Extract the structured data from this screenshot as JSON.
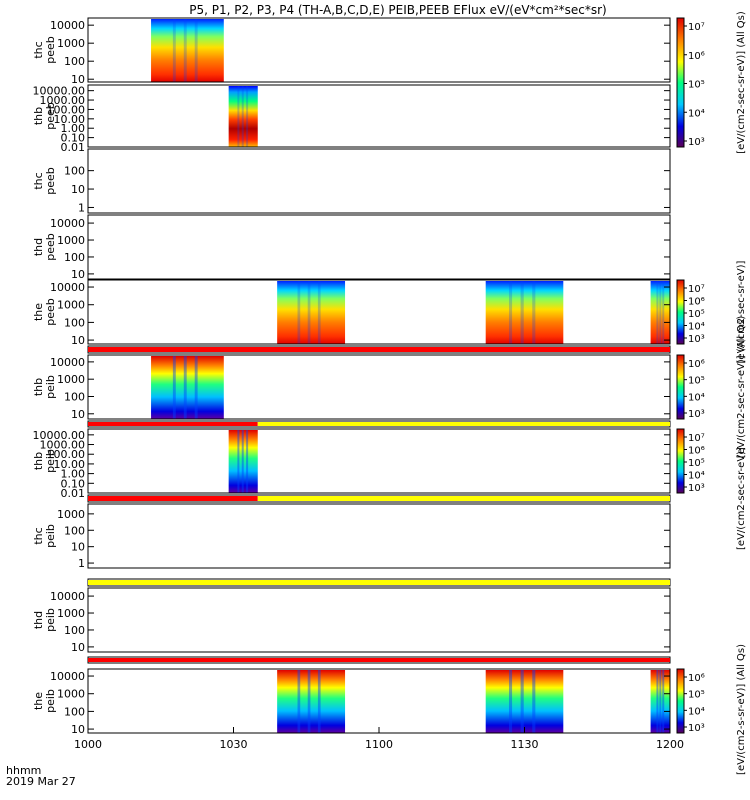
{
  "title": "P5, P1, P2, P3, P4 (TH-A,B,C,D,E) PEIB,PEEB EFlux eV/(eV*cm²*sec*sr)",
  "footer": {
    "hhmm": "hhmm",
    "date": "2019 Mar 27"
  },
  "chart_data": {
    "type": "heatmap",
    "x_ticks": [
      "1000",
      "1030",
      "1100",
      "1130",
      "1200"
    ],
    "x_range": [
      "10:00",
      "12:00"
    ],
    "xlabel": "",
    "grid": false,
    "panels": [
      {
        "ylabel": [
          "thc",
          "peeb"
        ],
        "yticks": [
          "10000",
          "1000",
          "100",
          "10"
        ],
        "y_range": [
          7,
          25000
        ],
        "log": true,
        "blocks": [
          {
            "t0": "10:13",
            "t1": "10:28",
            "kind": "electron"
          }
        ],
        "colorbar": {
          "ticks": [
            "10⁷",
            "10⁶",
            "10⁵",
            "10⁴",
            "10³"
          ]
        }
      },
      {
        "ylabel": [
          "thb",
          "peeb"
        ],
        "yticks": [
          "10000.00",
          "1000.00",
          "100.00",
          "10.00",
          "1.00",
          "0.10",
          "0.01"
        ],
        "y_range": [
          0.01,
          40000
        ],
        "log": true,
        "blocks": [
          {
            "t0": "10:29",
            "t1": "10:35",
            "kind": "electron_b"
          }
        ],
        "colorbar": {
          "ticks": [
            "10⁷",
            "10⁶",
            "10⁵",
            "10⁴",
            "10³"
          ]
        }
      },
      {
        "ylabel": [
          "thc",
          "peeb"
        ],
        "yticks": [
          "100",
          "10",
          "1"
        ],
        "y_range": [
          0.5,
          1500
        ],
        "log": true,
        "blocks": []
      },
      {
        "ylabel": [
          "thd",
          "peeb"
        ],
        "yticks": [
          "10000",
          "1000",
          "100",
          "10"
        ],
        "y_range": [
          5,
          30000
        ],
        "log": true,
        "blocks": []
      },
      {
        "ylabel": [
          "the",
          "peeb"
        ],
        "yticks": [
          "10000",
          "1000",
          "100",
          "10"
        ],
        "y_range": [
          6,
          25000
        ],
        "log": true,
        "blocks": [
          {
            "t0": "10:39",
            "t1": "10:53",
            "kind": "electron"
          },
          {
            "t0": "11:22",
            "t1": "11:38",
            "kind": "electron"
          },
          {
            "t0": "11:56",
            "t1": "12:00",
            "kind": "electron"
          }
        ],
        "colorbar": {
          "ticks": [
            "10⁷",
            "10⁶",
            "10⁵",
            "10⁴",
            "10³"
          ]
        }
      },
      {
        "ylabel": [
          "thb",
          "peib"
        ],
        "yticks": [
          "10000",
          "1000",
          "100",
          "10"
        ],
        "y_range": [
          5,
          25000
        ],
        "log": true,
        "blocks": [
          {
            "t0": "10:13",
            "t1": "10:28",
            "kind": "ion"
          }
        ],
        "colorbar": {
          "ticks": [
            "10⁶",
            "10⁵",
            "10⁴",
            "10³"
          ]
        }
      },
      {
        "ylabel": [
          "thb",
          "peib"
        ],
        "yticks": [
          "10000.00",
          "1000.00",
          "100.00",
          "10.00",
          "1.00",
          "0.10",
          "0.01"
        ],
        "y_range": [
          0.01,
          40000
        ],
        "log": true,
        "blocks": [
          {
            "t0": "10:29",
            "t1": "10:35",
            "kind": "ion"
          }
        ],
        "colorbar": {
          "ticks": [
            "10⁷",
            "10⁶",
            "10⁵",
            "10⁴",
            "10³"
          ]
        }
      },
      {
        "ylabel": [
          "thc",
          "peib"
        ],
        "yticks": [
          "1000",
          "100",
          "10",
          "1"
        ],
        "y_range": [
          0.5,
          4000
        ],
        "log": true,
        "blocks": []
      },
      {
        "ylabel": [
          "thd",
          "peib"
        ],
        "yticks": [
          "10000",
          "1000",
          "100",
          "10"
        ],
        "y_range": [
          5,
          30000
        ],
        "log": true,
        "blocks": []
      },
      {
        "ylabel": [
          "the",
          "peib"
        ],
        "yticks": [
          "10000",
          "1000",
          "100",
          "10"
        ],
        "y_range": [
          6,
          25000
        ],
        "log": true,
        "blocks": [
          {
            "t0": "10:39",
            "t1": "10:53",
            "kind": "ion"
          },
          {
            "t0": "11:22",
            "t1": "11:38",
            "kind": "ion"
          },
          {
            "t0": "11:56",
            "t1": "12:00",
            "kind": "ion"
          }
        ],
        "colorbar": {
          "ticks": [
            "10⁶",
            "10⁵",
            "10⁴",
            "10³"
          ]
        }
      }
    ],
    "mode_bars": [
      {
        "segments": [
          {
            "t0": "10:00",
            "t1": "12:00",
            "color": "#ff0000"
          }
        ]
      },
      {
        "segments": [
          {
            "t0": "10:00",
            "t1": "10:35",
            "color": "#ff0000"
          },
          {
            "t0": "10:35",
            "t1": "12:00",
            "color": "#ffff00"
          }
        ]
      },
      {
        "segments": [
          {
            "t0": "10:00",
            "t1": "10:35",
            "color": "#ff0000"
          },
          {
            "t0": "10:35",
            "t1": "12:00",
            "color": "#ffff00"
          }
        ]
      },
      {
        "segments": [
          {
            "t0": "10:00",
            "t1": "12:00",
            "color": "#ffff00"
          }
        ]
      },
      {
        "segments": [
          {
            "t0": "10:00",
            "t1": "12:00",
            "color": "#ff0000"
          }
        ]
      }
    ],
    "colorbar_labels": [
      "[eV/(cm2-sec-sr-eV)] (All Qs)",
      "[eV/(cm2-sec-sr-eV)]",
      "[eV/(cm2-sec-sr-eV)] (All Qs)",
      "[eV/(cm2-sec-sr-eV)]",
      "[eV/(cm2-s-sr-eV)] (All Qs)"
    ],
    "colors": {
      "scale": [
        "#5a0058",
        "#0000e0",
        "#00c8ff",
        "#00ff80",
        "#ffff00",
        "#ff8000",
        "#e00000"
      ],
      "mode_red": "#ff0000",
      "mode_yellow": "#ffff00"
    }
  }
}
